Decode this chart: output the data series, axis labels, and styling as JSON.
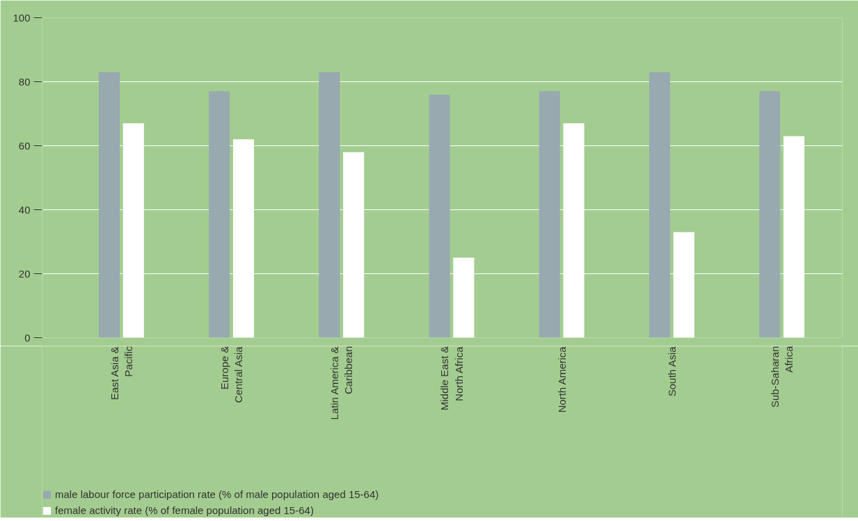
{
  "chart_data": {
    "type": "bar",
    "categories": [
      "East Asia & Pacific",
      "Europe & Central Asia",
      "Latin America & Caribbean",
      "Middle East & North Africa",
      "North America",
      "South Asia",
      "Sub-Saharan Africa"
    ],
    "series": [
      {
        "name": "male labour force participation rate (% of male population aged 15-64)",
        "color": "#98a9b0",
        "values": [
          83,
          77,
          83,
          76,
          77,
          83,
          77
        ]
      },
      {
        "name": "female activity rate (% of female population aged 15-64)",
        "color": "#ffffff",
        "values": [
          67,
          62,
          58,
          25,
          67,
          33,
          63
        ]
      }
    ],
    "ylim": [
      0,
      100
    ],
    "yticks": [
      0,
      20,
      40,
      60,
      80,
      100
    ],
    "grid": "y",
    "legend": "bottom"
  }
}
